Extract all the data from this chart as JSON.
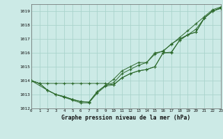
{
  "title": "Graphe pression niveau de la mer (hPa)",
  "background_color": "#cceae6",
  "grid_color": "#aad4cc",
  "line_color": "#2d6a2d",
  "xlim": [
    0,
    23
  ],
  "ylim": [
    1012,
    1019.5
  ],
  "yticks": [
    1012,
    1013,
    1014,
    1015,
    1016,
    1017,
    1018,
    1019
  ],
  "xticks": [
    0,
    1,
    2,
    3,
    4,
    5,
    6,
    7,
    8,
    9,
    10,
    11,
    12,
    13,
    14,
    15,
    16,
    17,
    18,
    19,
    20,
    21,
    22,
    23
  ],
  "line1_x": [
    0,
    1,
    2,
    3,
    4,
    5,
    6,
    7,
    8,
    9,
    10,
    11,
    12,
    13,
    14,
    15,
    16,
    17,
    18,
    19,
    20,
    21,
    22,
    23
  ],
  "line1_y": [
    1014.0,
    1013.8,
    1013.8,
    1013.8,
    1013.8,
    1013.8,
    1013.8,
    1013.8,
    1013.8,
    1013.8,
    1013.7,
    1014.2,
    1014.5,
    1014.7,
    1014.8,
    1015.0,
    1016.0,
    1016.05,
    1016.9,
    1017.3,
    1017.5,
    1018.5,
    1019.0,
    1019.2
  ],
  "line2_x": [
    0,
    1,
    2,
    3,
    4,
    5,
    6,
    7,
    8,
    9,
    10,
    11,
    12,
    13,
    14,
    15,
    16,
    17,
    18,
    19,
    20,
    21,
    22,
    23
  ],
  "line2_y": [
    1014.0,
    1013.8,
    1013.3,
    1013.0,
    1012.85,
    1012.65,
    1012.5,
    1012.45,
    1013.2,
    1013.65,
    1013.85,
    1014.5,
    1014.8,
    1015.1,
    1015.3,
    1015.9,
    1016.15,
    1016.6,
    1017.1,
    1017.6,
    1018.1,
    1018.6,
    1019.1,
    1019.3
  ],
  "line3_x": [
    0,
    1,
    2,
    3,
    4,
    5,
    6,
    7,
    8,
    9,
    10,
    11,
    12,
    13,
    14,
    15,
    16,
    17,
    18,
    19,
    20,
    21,
    22,
    23
  ],
  "line3_y": [
    1014.0,
    1013.8,
    1013.3,
    1013.0,
    1012.85,
    1012.65,
    1012.5,
    1012.45,
    1013.2,
    1013.65,
    1014.1,
    1014.7,
    1015.0,
    1015.3,
    1015.3,
    1016.0,
    1016.1,
    1016.65,
    1017.0,
    1017.3,
    1017.7,
    1018.5,
    1019.0,
    1019.25
  ],
  "line4_x": [
    0,
    2,
    3,
    4,
    5,
    6,
    7,
    8,
    9,
    10,
    11,
    12,
    13,
    14,
    15,
    16,
    17,
    18,
    19,
    20,
    21,
    22,
    23
  ],
  "line4_y": [
    1014.0,
    1013.3,
    1013.0,
    1012.8,
    1012.6,
    1012.4,
    1012.4,
    1013.1,
    1013.6,
    1013.7,
    1014.2,
    1014.5,
    1014.7,
    1014.8,
    1015.0,
    1016.0,
    1016.0,
    1016.9,
    1017.3,
    1017.5,
    1018.5,
    1019.0,
    1019.2
  ]
}
